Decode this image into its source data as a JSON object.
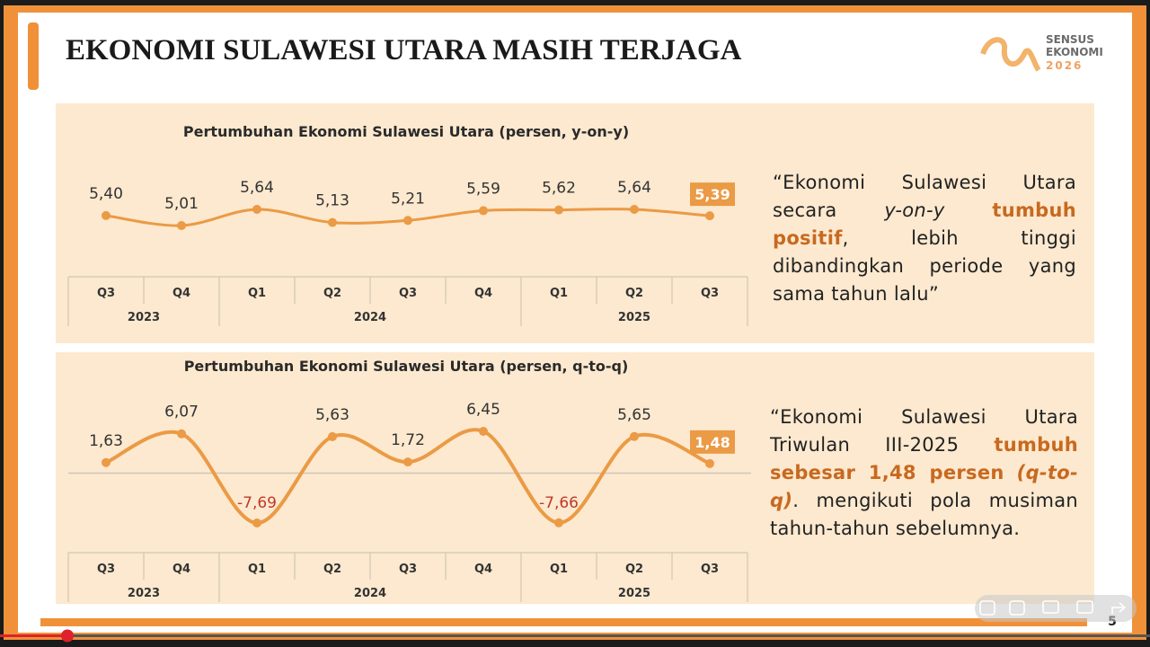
{
  "header": {
    "title": "EKONOMI SULAWESI UTARA MASIH TERJAGA",
    "logo": [
      "SENSUS",
      "EKONOMI",
      "2026"
    ]
  },
  "chart_data": [
    {
      "type": "line",
      "title": "Pertumbuhan Ekonomi Sulawesi Utara (persen, y-on-y)",
      "categories": [
        "Q3",
        "Q4",
        "Q1",
        "Q2",
        "Q3",
        "Q4",
        "Q1",
        "Q2",
        "Q3"
      ],
      "groups": [
        "2023",
        "2024",
        "2025"
      ],
      "values": [
        5.4,
        5.01,
        5.64,
        5.13,
        5.21,
        5.59,
        5.62,
        5.64,
        5.39
      ],
      "value_labels": [
        "5,40",
        "5,01",
        "5,64",
        "5,13",
        "5,21",
        "5,59",
        "5,62",
        "5,64",
        "5,39"
      ],
      "color": "#eb9a45"
    },
    {
      "type": "line",
      "title": "Pertumbuhan Ekonomi Sulawesi Utara (persen, q-to-q)",
      "categories": [
        "Q3",
        "Q4",
        "Q1",
        "Q2",
        "Q3",
        "Q4",
        "Q1",
        "Q2",
        "Q3"
      ],
      "groups": [
        "2023",
        "2024",
        "2025"
      ],
      "values": [
        1.63,
        6.07,
        -7.69,
        5.63,
        1.72,
        6.45,
        -7.66,
        5.65,
        1.48
      ],
      "value_labels": [
        "1,63",
        "6,07",
        "-7,69",
        "5,63",
        "1,72",
        "6,45",
        "-7,66",
        "5,65",
        "1,48"
      ],
      "color": "#eb9a45"
    }
  ],
  "quotes": [
    [
      "“Ekonomi Sulawesi Utara secara",
      "y-on-y",
      "tumbuh positif",
      ", lebih tinggi dibandingkan periode yang sama tahun lalu”"
    ],
    [
      "“Ekonomi Sulawesi Utara Triwulan III-2025",
      "tumbuh sebesar 1,48 persen",
      "(q-to-q)",
      ". mengikuti pola musiman tahun-tahun sebelumnya."
    ]
  ],
  "page_number": "5"
}
